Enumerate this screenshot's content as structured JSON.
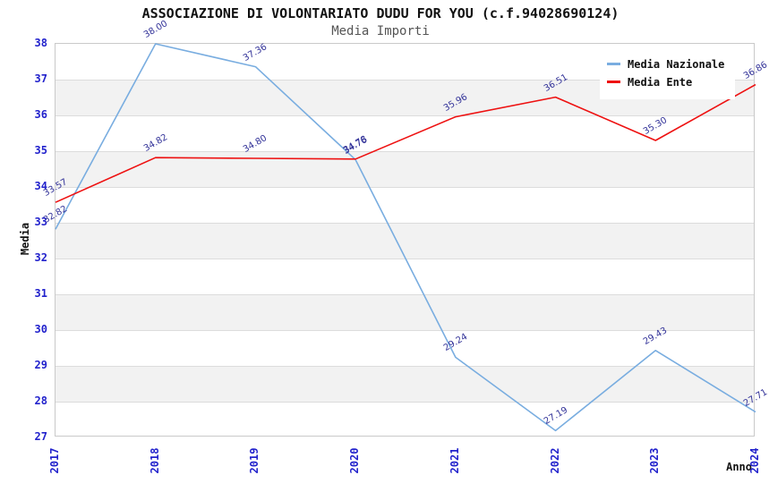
{
  "chart_data": {
    "type": "line",
    "title": "ASSOCIAZIONE DI VOLONTARIATO DUDU FOR YOU (c.f.94028690124)",
    "subtitle": "Media Importi",
    "xlabel": "Anno",
    "ylabel": "Media",
    "x": [
      2017,
      2018,
      2019,
      2020,
      2021,
      2022,
      2023,
      2024
    ],
    "ylim": [
      27,
      38
    ],
    "y_ticks": [
      27,
      28,
      29,
      30,
      31,
      32,
      33,
      34,
      35,
      36,
      37,
      38
    ],
    "grid": "horizontal",
    "legend_position": "top-right",
    "series": [
      {
        "name": "Media Nazionale",
        "color": "#79ade0",
        "values": [
          32.82,
          38.0,
          37.36,
          34.76,
          29.24,
          27.19,
          29.43,
          27.71
        ]
      },
      {
        "name": "Media Ente",
        "color": "#ee1111",
        "values": [
          33.57,
          34.82,
          34.8,
          34.78,
          35.96,
          36.51,
          35.3,
          36.86
        ]
      }
    ],
    "colors": {
      "band": "#f2f2f2",
      "gridline": "#dcdcdc",
      "plot_border": "#c9c9c9",
      "tick_label": "#2222cc",
      "data_label": "#333399",
      "title": "#111111",
      "subtitle": "#555555"
    }
  }
}
